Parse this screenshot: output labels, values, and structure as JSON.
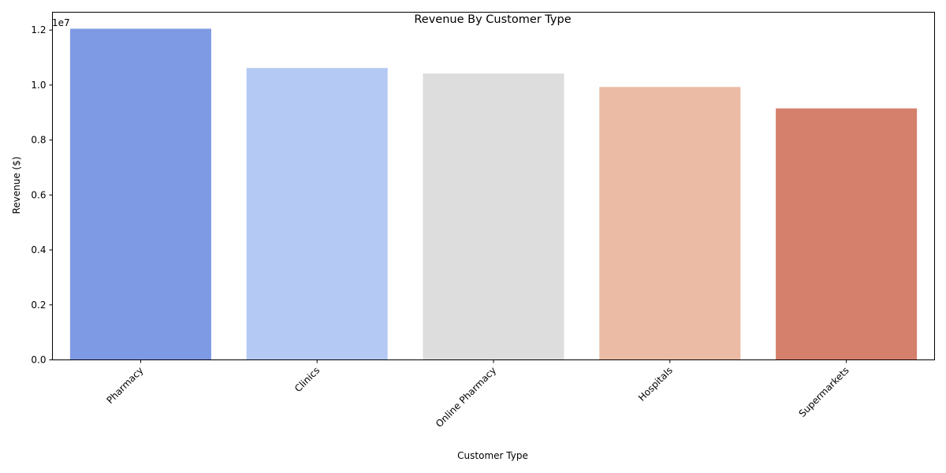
{
  "chart_data": {
    "type": "bar",
    "title": "Revenue By Customer Type",
    "xlabel": "Customer Type",
    "ylabel": "Revenue ($)",
    "offset_text": "1e7",
    "categories": [
      "Pharmacy​",
      "Clinics​",
      "Online Pharmacy​",
      "Hospitals​",
      "Supermarkets​"
    ],
    "values": [
      12050000,
      10620000,
      10420000,
      9930000,
      9150000
    ],
    "colors": [
      "#7f9ae4",
      "#b4c9f3",
      "#dddddd",
      "#ebbba5",
      "#d5806d"
    ],
    "ylim": [
      0,
      12650000
    ],
    "yticks": [
      0,
      2000000,
      4000000,
      6000000,
      8000000,
      10000000,
      12000000
    ],
    "ytick_labels": [
      "0.0",
      "0.2",
      "0.4",
      "0.6",
      "0.8",
      "1.0",
      "1.2"
    ],
    "grid": false,
    "legend": "none"
  }
}
